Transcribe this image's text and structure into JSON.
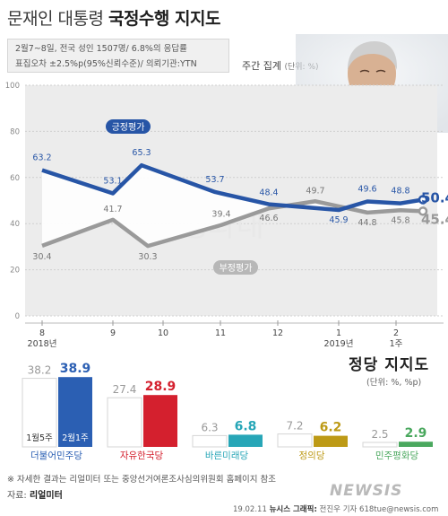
{
  "title": {
    "prefix": "문재인 대통령",
    "main": "국정수행 지지도"
  },
  "survey": {
    "line1": "2월7~8일, 전국 성인 1507명/ 6.8%의 응답률",
    "line2": "표집오차 ±2.5%p(95%신뢰수준)/ 의뢰기관:YTN"
  },
  "weekly": {
    "label": "주간 집계",
    "unit": "(단위: %)"
  },
  "watermark": "청와대",
  "logo": "NEWSIS",
  "colors": {
    "approve": "#2755a6",
    "disapprove": "#9a9a9a"
  },
  "chart_data": [
    {
      "type": "line",
      "y_ticks": [
        "100",
        "80",
        "60",
        "40",
        "20",
        "0"
      ],
      "ylim": [
        0,
        100
      ],
      "x_ticks": [
        "8\n2018년",
        "9",
        "10",
        "11",
        "12",
        "1\n2019년",
        "2\n1주"
      ],
      "series": [
        {
          "name": "긍정평가",
          "color": "#2755a6",
          "labeled_points": [
            {
              "x": "8월 초",
              "y": 63.2,
              "label": "63.2"
            },
            {
              "x": "9월 초",
              "y": 53.1,
              "label": "53.1"
            },
            {
              "x": "9월 말",
              "y": 65.3,
              "label": "65.3"
            },
            {
              "x": "11월 초",
              "y": 53.7,
              "label": "53.7"
            },
            {
              "x": "12월 초",
              "y": 48.4,
              "label": "48.4"
            },
            {
              "x": "1월 초",
              "y": 45.9,
              "label": "45.9"
            },
            {
              "x": "1월 중",
              "y": 49.6,
              "label": "49.6"
            },
            {
              "x": "1월 말",
              "y": 48.8,
              "label": "48.8"
            },
            {
              "x": "2월 1주",
              "y": 50.4,
              "label": "50.4%"
            }
          ]
        },
        {
          "name": "부정평가",
          "color": "#9a9a9a",
          "labeled_points": [
            {
              "x": "8월 초",
              "y": 30.4,
              "label": "30.4"
            },
            {
              "x": "9월 초",
              "y": 41.7,
              "label": "41.7"
            },
            {
              "x": "9월 말",
              "y": 30.3,
              "label": "30.3"
            },
            {
              "x": "11월 초",
              "y": 39.4,
              "label": "39.4"
            },
            {
              "x": "12월 초",
              "y": 46.6,
              "label": "46.6"
            },
            {
              "x": "12월 말",
              "y": 49.7,
              "label": "49.7"
            },
            {
              "x": "1월 중",
              "y": 44.8,
              "label": "44.8"
            },
            {
              "x": "1월 말",
              "y": 45.8,
              "label": "45.8"
            },
            {
              "x": "2월 1주",
              "y": 45.4,
              "label": "45.4%"
            }
          ]
        }
      ]
    },
    {
      "type": "bar",
      "title": "정당 지지도",
      "unit": "(단위: %, %p)",
      "legend": {
        "prev": "1월5주",
        "curr": "2월1주"
      },
      "categories": [
        "더불어민주당",
        "자유한국당",
        "바른미래당",
        "정의당",
        "민주평화당"
      ],
      "series": [
        {
          "name": "1월5주",
          "values": [
            38.2,
            27.4,
            6.3,
            7.2,
            2.5
          ]
        },
        {
          "name": "2월1주",
          "values": [
            38.9,
            28.9,
            6.8,
            6.2,
            2.9
          ]
        }
      ],
      "colors": [
        "#2b5fb3",
        "#d4202e",
        "#27a6b7",
        "#bd9a16",
        "#4aa85e"
      ]
    }
  ],
  "footnote": "※ 자세한 결과는 리얼미터 또는 중앙선거여론조사심의위원회 홈페이지 참조",
  "source": {
    "label": "자료:",
    "name": "리얼미터"
  },
  "credit": {
    "date": "19.02.11",
    "agency": "뉴시스 그래픽:",
    "author": "전진우 기자 618tue@newsis.com"
  }
}
